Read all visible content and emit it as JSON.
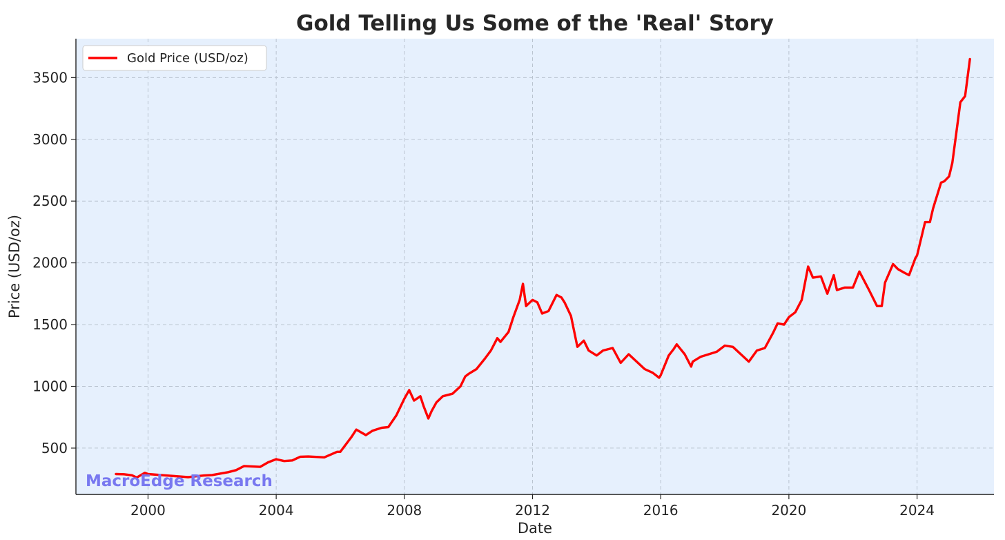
{
  "chart_data": {
    "type": "line",
    "title": "Gold Telling Us Some of the 'Real' Story",
    "xlabel": "Date",
    "ylabel": "Price (USD/oz)",
    "xlim": [
      1997.75,
      2026.4
    ],
    "ylim": [
      125,
      3815
    ],
    "x_ticks": [
      2000,
      2004,
      2008,
      2012,
      2016,
      2020,
      2024
    ],
    "y_ticks": [
      500,
      1000,
      1500,
      2000,
      2500,
      3000,
      3500
    ],
    "grid": true,
    "legend_position": "top-left",
    "watermark": "MacroEdge Research",
    "colors": {
      "line": "#ff0000",
      "plot_background": "#e6f0fd",
      "grid": "#b9c3d0",
      "watermark": "#7878f0"
    },
    "series": [
      {
        "name": "Gold Price (USD/oz)",
        "x": [
          1999.0,
          1999.25,
          1999.5,
          1999.65,
          1999.9,
          2000.0,
          2000.5,
          2001.0,
          2001.25,
          2001.5,
          2001.75,
          2002.0,
          2002.5,
          2002.75,
          2003.0,
          2003.5,
          2003.75,
          2004.0,
          2004.25,
          2004.5,
          2004.75,
          2005.0,
          2005.5,
          2005.9,
          2006.0,
          2006.35,
          2006.5,
          2006.8,
          2007.0,
          2007.3,
          2007.5,
          2007.75,
          2008.0,
          2008.15,
          2008.3,
          2008.5,
          2008.6,
          2008.75,
          2008.85,
          2009.0,
          2009.2,
          2009.5,
          2009.75,
          2009.9,
          2010.0,
          2010.25,
          2010.5,
          2010.7,
          2010.9,
          2011.0,
          2011.25,
          2011.4,
          2011.6,
          2011.7,
          2011.8,
          2012.0,
          2012.15,
          2012.3,
          2012.5,
          2012.75,
          2012.9,
          2013.0,
          2013.2,
          2013.4,
          2013.6,
          2013.75,
          2014.0,
          2014.2,
          2014.5,
          2014.75,
          2015.0,
          2015.25,
          2015.5,
          2015.75,
          2015.95,
          2016.0,
          2016.25,
          2016.4,
          2016.5,
          2016.75,
          2016.95,
          2017.0,
          2017.25,
          2017.5,
          2017.75,
          2018.0,
          2018.25,
          2018.5,
          2018.75,
          2019.0,
          2019.25,
          2019.5,
          2019.65,
          2019.85,
          2020.0,
          2020.2,
          2020.4,
          2020.6,
          2020.75,
          2021.0,
          2021.2,
          2021.4,
          2021.5,
          2021.75,
          2022.0,
          2022.2,
          2022.5,
          2022.75,
          2022.9,
          2023.0,
          2023.25,
          2023.4,
          2023.6,
          2023.75,
          2023.95,
          2024.0,
          2024.25,
          2024.4,
          2024.5,
          2024.75,
          2024.85,
          2025.0,
          2025.1,
          2025.25,
          2025.35,
          2025.5,
          2025.65
        ],
        "y": [
          290,
          288,
          280,
          262,
          300,
          290,
          280,
          270,
          265,
          272,
          278,
          282,
          305,
          322,
          355,
          348,
          385,
          410,
          395,
          400,
          430,
          432,
          425,
          470,
          470,
          590,
          650,
          605,
          640,
          665,
          670,
          765,
          900,
          970,
          885,
          920,
          840,
          740,
          800,
          870,
          920,
          940,
          1000,
          1080,
          1100,
          1140,
          1220,
          1290,
          1390,
          1360,
          1440,
          1560,
          1700,
          1830,
          1650,
          1700,
          1680,
          1590,
          1610,
          1740,
          1720,
          1680,
          1570,
          1320,
          1370,
          1290,
          1250,
          1290,
          1310,
          1190,
          1260,
          1200,
          1140,
          1110,
          1070,
          1090,
          1250,
          1300,
          1340,
          1260,
          1160,
          1200,
          1240,
          1260,
          1280,
          1330,
          1320,
          1260,
          1200,
          1290,
          1310,
          1430,
          1510,
          1500,
          1560,
          1600,
          1700,
          1970,
          1880,
          1890,
          1750,
          1900,
          1780,
          1800,
          1800,
          1930,
          1780,
          1650,
          1650,
          1840,
          1990,
          1950,
          1920,
          1900,
          2040,
          2060,
          2330,
          2330,
          2440,
          2650,
          2660,
          2700,
          2810,
          3100,
          3300,
          3350,
          3650
        ]
      }
    ]
  }
}
